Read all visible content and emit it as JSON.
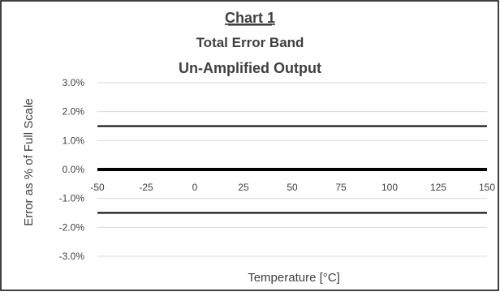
{
  "chart_data": {
    "type": "line",
    "title_lines": [
      "Chart 1",
      "Total Error Band",
      "Un-Amplified Output"
    ],
    "xlabel": "Temperature [°C]",
    "ylabel": "Error as % of Full Scale",
    "xlim": [
      -50,
      150
    ],
    "ylim": [
      -3,
      3
    ],
    "x_ticks": [
      -50,
      -25,
      0,
      25,
      50,
      75,
      100,
      125,
      150
    ],
    "x_tick_labels": [
      "-50",
      "-25",
      "0",
      "25",
      "50",
      "75",
      "100",
      "125",
      "150"
    ],
    "y_ticks": [
      3,
      2,
      1,
      0,
      -1,
      -2,
      -3
    ],
    "y_tick_labels": [
      "3.0%",
      "2.0%",
      "1.0%",
      "0.0%",
      "-1.0%",
      "-2.0%",
      "-3.0%"
    ],
    "grid": true,
    "legend": "none",
    "series": [
      {
        "x": [
          -50,
          150
        ],
        "values": [
          1.5,
          1.5
        ],
        "color": "#000000"
      },
      {
        "x": [
          -50,
          150
        ],
        "values": [
          0,
          0
        ],
        "color": "#000000"
      },
      {
        "x": [
          -50,
          150
        ],
        "values": [
          -1.5,
          -1.5
        ],
        "color": "#000000"
      }
    ],
    "colors": {
      "grid": "#d9d9d9",
      "text": "#404040",
      "line": "#000000",
      "border": "#000000"
    }
  }
}
